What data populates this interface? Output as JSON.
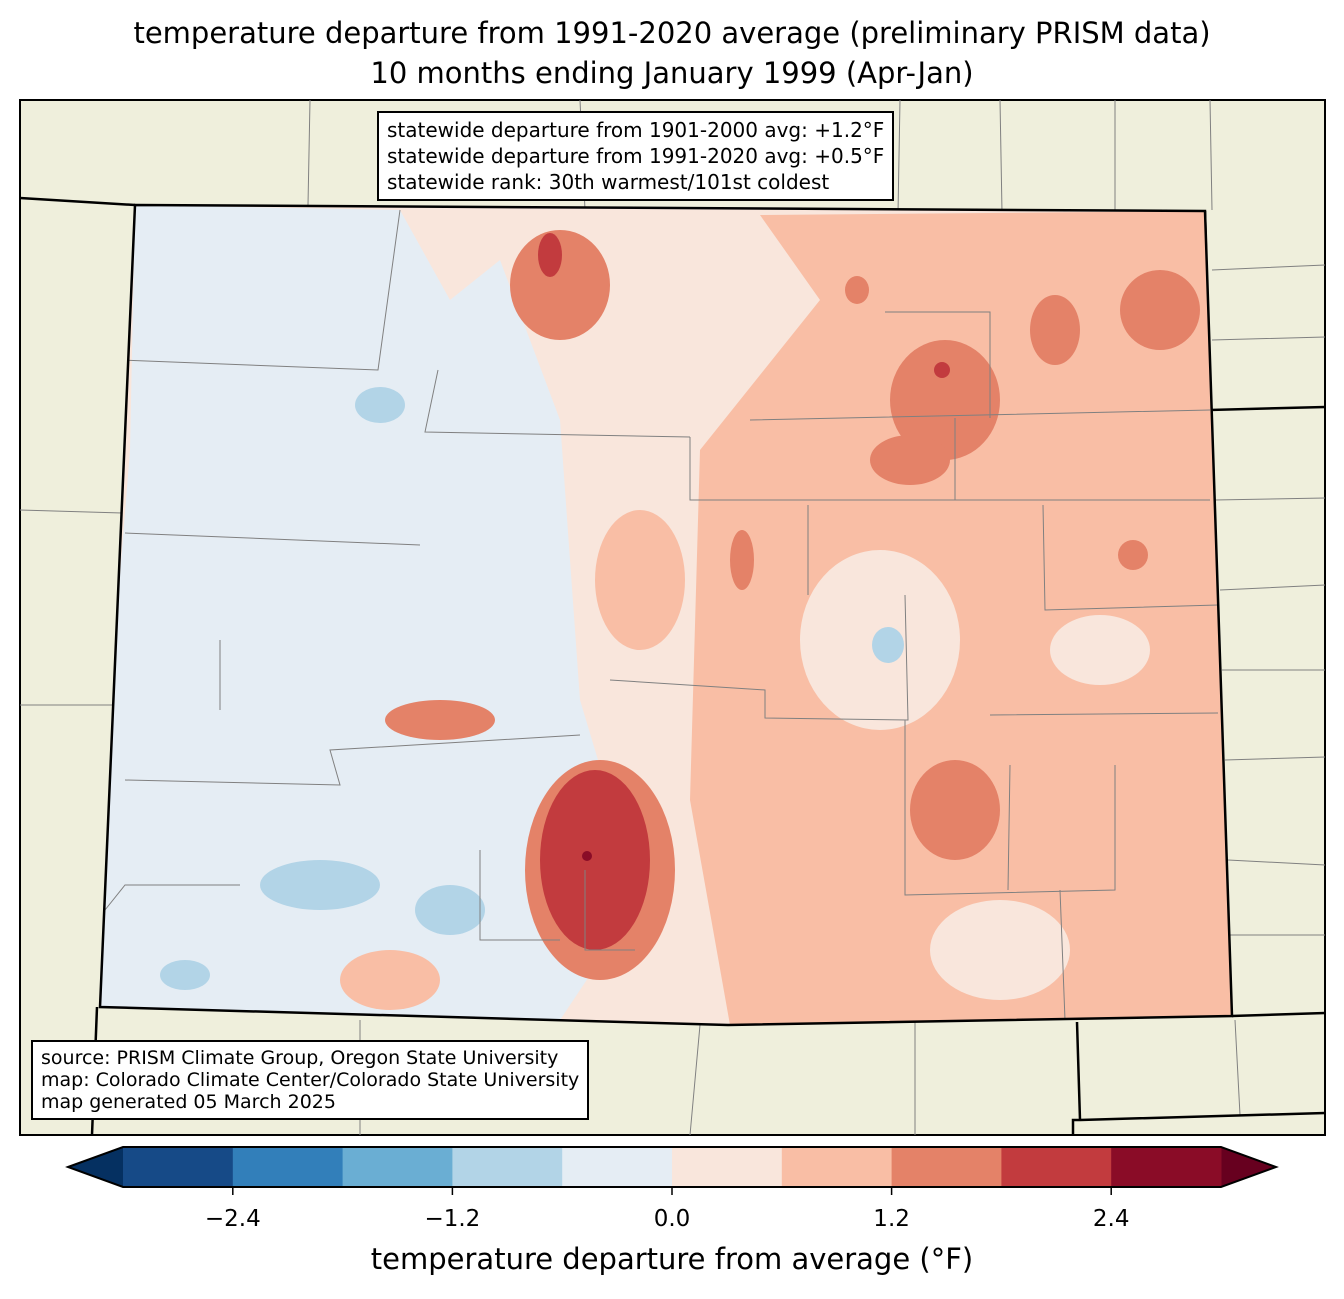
{
  "title": {
    "line1": "temperature departure from 1991-2020 average (preliminary PRISM data)",
    "line2": "10 months ending January 1999 (Apr-Jan)"
  },
  "stats_box": {
    "line1": "statewide departure from 1901-2000 avg: +1.2°F",
    "line2": "statewide departure from 1991-2020 avg: +0.5°F",
    "line3": "statewide rank: 30th warmest/101st coldest"
  },
  "source_box": {
    "line1": "source: PRISM Climate Group, Oregon State University",
    "line2": "map: Colorado Climate Center/Colorado State University",
    "line3": "map generated 05 March 2025"
  },
  "colorbar": {
    "label": "temperature departure from average (°F)",
    "ticks": [
      "−2.4",
      "−1.2",
      "0.0",
      "1.2",
      "2.4"
    ],
    "tick_values": [
      -2.4,
      -1.2,
      0.0,
      1.2,
      2.4
    ],
    "bounds": [
      -3.0,
      -2.4,
      -1.8,
      -1.2,
      -0.6,
      0.0,
      0.6,
      1.2,
      1.8,
      2.4,
      3.0
    ],
    "colors": [
      "#164a87",
      "#327fba",
      "#6aaed3",
      "#b2d4e7",
      "#e5edf4",
      "#f9e6dc",
      "#f9bea5",
      "#e48268",
      "#c23b3e",
      "#8a0c27"
    ],
    "under_color": "#053061",
    "over_color": "#67001f"
  },
  "map_colors": {
    "land": "#efefdc",
    "border": "#000000",
    "county": "#808080"
  }
}
